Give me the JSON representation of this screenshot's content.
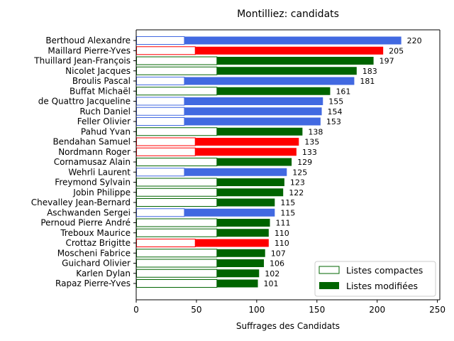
{
  "chart_data": {
    "type": "bar",
    "orientation": "horizontal",
    "title": "Montilliez: candidats",
    "xlabel": "Suffrages des Candidats",
    "ylabel": "",
    "xlim": [
      0,
      252
    ],
    "xticks": [
      0,
      50,
      100,
      150,
      200,
      250
    ],
    "grid": false,
    "legend_position": "lower-right",
    "legend": [
      {
        "label": "Listes compactes",
        "style": "outline",
        "color": "#006400"
      },
      {
        "label": "Listes modifiées",
        "style": "filled",
        "color": "#006400"
      }
    ],
    "party_colors": {
      "blue": "#4169e1",
      "red": "#ff0000",
      "green": "#006400"
    },
    "candidates": [
      {
        "name": "Berthoud Alexandre",
        "total": 220,
        "compact": 40,
        "party": "blue"
      },
      {
        "name": "Maillard Pierre-Yves",
        "total": 205,
        "compact": 49,
        "party": "red"
      },
      {
        "name": "Thuillard Jean-François",
        "total": 197,
        "compact": 67,
        "party": "green"
      },
      {
        "name": "Nicolet Jacques",
        "total": 183,
        "compact": 67,
        "party": "green"
      },
      {
        "name": "Broulis Pascal",
        "total": 181,
        "compact": 40,
        "party": "blue"
      },
      {
        "name": "Buffat Michaël",
        "total": 161,
        "compact": 67,
        "party": "green"
      },
      {
        "name": "de Quattro Jacqueline",
        "total": 155,
        "compact": 40,
        "party": "blue"
      },
      {
        "name": "Ruch Daniel",
        "total": 154,
        "compact": 40,
        "party": "blue"
      },
      {
        "name": "Feller Olivier",
        "total": 153,
        "compact": 40,
        "party": "blue"
      },
      {
        "name": "Pahud Yvan",
        "total": 138,
        "compact": 67,
        "party": "green"
      },
      {
        "name": "Bendahan Samuel",
        "total": 135,
        "compact": 49,
        "party": "red"
      },
      {
        "name": "Nordmann Roger",
        "total": 133,
        "compact": 49,
        "party": "red"
      },
      {
        "name": "Cornamusaz Alain",
        "total": 129,
        "compact": 67,
        "party": "green"
      },
      {
        "name": "Wehrli Laurent",
        "total": 125,
        "compact": 40,
        "party": "blue"
      },
      {
        "name": "Freymond Sylvain",
        "total": 123,
        "compact": 67,
        "party": "green"
      },
      {
        "name": "Jobin Philippe",
        "total": 122,
        "compact": 67,
        "party": "green"
      },
      {
        "name": "Chevalley Jean-Bernard",
        "total": 115,
        "compact": 67,
        "party": "green"
      },
      {
        "name": "Aschwanden Sergei",
        "total": 115,
        "compact": 40,
        "party": "blue"
      },
      {
        "name": "Pernoud Pierre André",
        "total": 111,
        "compact": 67,
        "party": "green"
      },
      {
        "name": "Treboux Maurice",
        "total": 110,
        "compact": 67,
        "party": "green"
      },
      {
        "name": "Crottaz Brigitte",
        "total": 110,
        "compact": 49,
        "party": "red"
      },
      {
        "name": "Moscheni Fabrice",
        "total": 107,
        "compact": 67,
        "party": "green"
      },
      {
        "name": "Guichard Olivier",
        "total": 106,
        "compact": 67,
        "party": "green"
      },
      {
        "name": "Karlen Dylan",
        "total": 102,
        "compact": 67,
        "party": "green"
      },
      {
        "name": "Rapaz Pierre-Yves",
        "total": 101,
        "compact": 67,
        "party": "green"
      }
    ]
  }
}
